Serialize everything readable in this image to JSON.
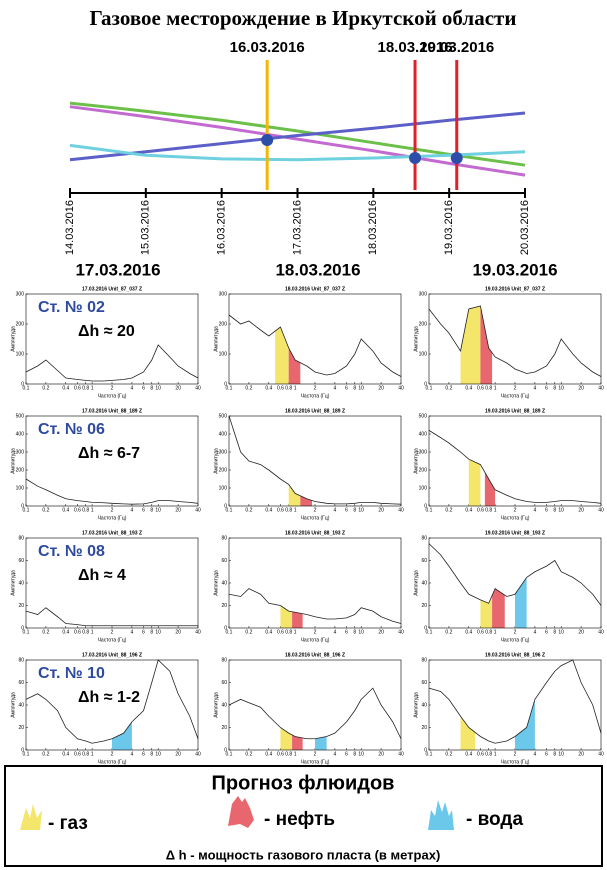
{
  "title": "Газовое месторождение в Иркутской области",
  "columns": [
    "17.03.2016",
    "18.03.2016",
    "19.03.2016"
  ],
  "stations": [
    {
      "name": "Ст. № 02",
      "dh": "Δh ≈ 20"
    },
    {
      "name": "Ст. № 06",
      "dh": "Δh ≈ 6-7"
    },
    {
      "name": "Ст. № 08",
      "dh": "Δh ≈ 4"
    },
    {
      "name": "Ст. № 10",
      "dh": "Δh ≈ 1-2"
    }
  ],
  "legend": {
    "title": "Прогноз флюидов",
    "items": [
      {
        "label": "- газ",
        "color": "#f4e66a"
      },
      {
        "label": "- нефть",
        "color": "#e8666e"
      },
      {
        "label": "- вода",
        "color": "#6cc8ea"
      }
    ],
    "note": "Δ h  - мощность газового пласта (в метрах)"
  },
  "chart_data": [
    {
      "type": "line",
      "xlim": [
        0,
        6
      ],
      "xticks": [
        {
          "value": 0,
          "label": "14.03.2016"
        },
        {
          "value": 1,
          "label": "15.03.2016"
        },
        {
          "value": 2,
          "label": "16.03.2016"
        },
        {
          "value": 3,
          "label": "17.03.2016"
        },
        {
          "value": 4,
          "label": "18.03.2016"
        },
        {
          "value": 5,
          "label": "19.03.2016"
        },
        {
          "value": 6,
          "label": "20.03.2016"
        }
      ],
      "ylim": [
        0,
        100
      ],
      "x": [
        0,
        1,
        2,
        3,
        4,
        5,
        6
      ],
      "series": [
        {
          "color": "#6cc04a",
          "values": [
            91,
            82,
            72,
            60,
            47,
            34,
            22
          ]
        },
        {
          "color": "#c36ad0",
          "values": [
            87,
            76,
            64,
            51,
            38,
            24,
            11
          ]
        },
        {
          "color": "#5b5fc7",
          "values": [
            28,
            37,
            46,
            55,
            63,
            72,
            80
          ]
        },
        {
          "color": "#6fd0e0",
          "values": [
            44,
            33,
            29,
            28,
            30,
            33,
            37
          ]
        }
      ],
      "markers": [
        {
          "label": "16.03.2016",
          "x": 2.6,
          "color": "#f5b800"
        },
        {
          "label": "18.03.2016",
          "x": 4.55,
          "color": "#e0202a"
        },
        {
          "label": "19.03.2016",
          "x": 5.1,
          "color": "#e0202a"
        }
      ],
      "points": [
        {
          "x": 2.6,
          "y": 50
        },
        {
          "x": 4.55,
          "y": 30
        },
        {
          "x": 5.1,
          "y": 30
        }
      ],
      "point_color": "#2d4ea8"
    },
    {
      "type": "spectrum",
      "title": "17.03.2016 Unit_87_037 Z",
      "xlabel": "Частота (Гц)",
      "ylabel": "Амплитуда",
      "log_x": true,
      "xlim": [
        0.1,
        40
      ],
      "xticks": [
        0.1,
        0.2,
        0.4,
        0.6,
        0.8,
        1,
        2,
        4,
        6,
        8,
        10,
        20,
        40
      ],
      "ylim": [
        0,
        300
      ],
      "yticks": [
        0,
        100,
        200,
        300
      ],
      "x": [
        0.1,
        0.15,
        0.2,
        0.3,
        0.4,
        0.6,
        0.8,
        1,
        1.5,
        2,
        3,
        4,
        6,
        8,
        10,
        15,
        20,
        30,
        40
      ],
      "values": [
        40,
        60,
        80,
        45,
        20,
        15,
        12,
        10,
        10,
        12,
        15,
        20,
        40,
        80,
        130,
        90,
        60,
        35,
        20
      ],
      "regions": []
    },
    {
      "type": "spectrum",
      "title": "18.03.2016 Unit_87_037 Z",
      "xlabel": "Частота (Гц)",
      "ylabel": "Амплитуда",
      "log_x": true,
      "xlim": [
        0.1,
        40
      ],
      "xticks": [
        0.1,
        0.2,
        0.4,
        0.6,
        0.8,
        1,
        2,
        4,
        6,
        8,
        10,
        20,
        40
      ],
      "ylim": [
        0,
        300
      ],
      "yticks": [
        0,
        100,
        200,
        300
      ],
      "x": [
        0.1,
        0.15,
        0.2,
        0.3,
        0.4,
        0.6,
        0.8,
        1,
        1.5,
        2,
        3,
        4,
        6,
        8,
        10,
        15,
        20,
        30,
        40
      ],
      "values": [
        230,
        200,
        210,
        180,
        160,
        190,
        120,
        80,
        60,
        40,
        30,
        35,
        60,
        100,
        150,
        110,
        70,
        40,
        25
      ],
      "regions": [
        {
          "x": [
            0.5,
            0.8
          ],
          "color": "#f4e66a"
        },
        {
          "x": [
            0.8,
            1.2
          ],
          "color": "#e8666e"
        }
      ]
    },
    {
      "type": "spectrum",
      "title": "19.03.2016 Unit_87_037 Z",
      "xlabel": "Частота (Гц)",
      "ylabel": "Амплитуда",
      "log_x": true,
      "xlim": [
        0.1,
        40
      ],
      "xticks": [
        0.1,
        0.2,
        0.4,
        0.6,
        0.8,
        1,
        2,
        4,
        6,
        8,
        10,
        20,
        40
      ],
      "ylim": [
        0,
        300
      ],
      "yticks": [
        0,
        100,
        200,
        300
      ],
      "x": [
        0.1,
        0.15,
        0.2,
        0.3,
        0.4,
        0.6,
        0.8,
        1,
        1.5,
        2,
        3,
        4,
        6,
        8,
        10,
        15,
        20,
        30,
        40
      ],
      "values": [
        250,
        200,
        170,
        110,
        250,
        260,
        120,
        90,
        70,
        50,
        35,
        40,
        60,
        100,
        150,
        100,
        70,
        40,
        25
      ],
      "regions": [
        {
          "x": [
            0.3,
            0.6
          ],
          "color": "#f4e66a"
        },
        {
          "x": [
            0.6,
            0.9
          ],
          "color": "#e8666e"
        }
      ]
    },
    {
      "type": "spectrum",
      "title": "17.03.2016 Unit_88_189 Z",
      "xlabel": "Частота (Гц)",
      "ylabel": "Амплитуда",
      "log_x": true,
      "xlim": [
        0.1,
        40
      ],
      "xticks": [
        0.1,
        0.2,
        0.4,
        0.6,
        0.8,
        1,
        2,
        4,
        6,
        8,
        10,
        20,
        40
      ],
      "ylim": [
        0,
        500
      ],
      "yticks": [
        0,
        100,
        200,
        300,
        400,
        500
      ],
      "x": [
        0.1,
        0.15,
        0.2,
        0.3,
        0.4,
        0.6,
        0.8,
        1,
        1.5,
        2,
        3,
        4,
        6,
        8,
        10,
        15,
        20,
        30,
        40
      ],
      "values": [
        150,
        110,
        90,
        60,
        40,
        30,
        25,
        20,
        18,
        15,
        12,
        10,
        12,
        20,
        30,
        30,
        25,
        20,
        15
      ],
      "regions": []
    },
    {
      "type": "spectrum",
      "title": "18.03.2016 Unit_88_189 Z",
      "xlabel": "Частота (Гц)",
      "ylabel": "Амплитуда",
      "log_x": true,
      "xlim": [
        0.1,
        40
      ],
      "xticks": [
        0.1,
        0.2,
        0.4,
        0.6,
        0.8,
        1,
        2,
        4,
        6,
        8,
        10,
        20,
        40
      ],
      "ylim": [
        0,
        500
      ],
      "yticks": [
        0,
        100,
        200,
        300,
        400,
        500
      ],
      "x": [
        0.1,
        0.15,
        0.2,
        0.3,
        0.4,
        0.6,
        0.8,
        1,
        1.5,
        2,
        3,
        4,
        6,
        8,
        10,
        15,
        20,
        30,
        40
      ],
      "values": [
        500,
        300,
        250,
        230,
        200,
        150,
        120,
        70,
        40,
        25,
        15,
        12,
        12,
        15,
        20,
        20,
        15,
        12,
        10
      ],
      "regions": [
        {
          "x": [
            0.8,
            1.2
          ],
          "color": "#f4e66a"
        },
        {
          "x": [
            1.2,
            1.8
          ],
          "color": "#e8666e"
        }
      ]
    },
    {
      "type": "spectrum",
      "title": "19.03.2016 Unit_88_189 Z",
      "xlabel": "Частота (Гц)",
      "ylabel": "Амплитуда",
      "log_x": true,
      "xlim": [
        0.1,
        40
      ],
      "xticks": [
        0.1,
        0.2,
        0.4,
        0.6,
        0.8,
        1,
        2,
        4,
        6,
        8,
        10,
        20,
        40
      ],
      "ylim": [
        0,
        500
      ],
      "yticks": [
        0,
        100,
        200,
        300,
        400,
        500
      ],
      "x": [
        0.1,
        0.15,
        0.2,
        0.3,
        0.4,
        0.6,
        0.8,
        1,
        1.5,
        2,
        3,
        4,
        6,
        8,
        10,
        15,
        20,
        30,
        40
      ],
      "values": [
        420,
        380,
        350,
        300,
        260,
        230,
        150,
        90,
        60,
        40,
        25,
        20,
        20,
        25,
        30,
        30,
        25,
        20,
        15
      ],
      "regions": [
        {
          "x": [
            0.4,
            0.6
          ],
          "color": "#f4e66a"
        },
        {
          "x": [
            0.7,
            1.0
          ],
          "color": "#e8666e"
        }
      ]
    },
    {
      "type": "spectrum",
      "title": "17.03.2016 Unit_88_193 Z",
      "xlabel": "Частота (Гц)",
      "ylabel": "Амплитуда",
      "log_x": true,
      "xlim": [
        0.1,
        40
      ],
      "xticks": [
        0.1,
        0.2,
        0.4,
        0.6,
        0.8,
        1,
        2,
        4,
        6,
        8,
        10,
        20,
        40
      ],
      "ylim": [
        0,
        80
      ],
      "yticks": [
        0,
        20,
        40,
        60,
        80
      ],
      "x": [
        0.1,
        0.15,
        0.2,
        0.3,
        0.4,
        0.6,
        0.8,
        1,
        1.5,
        2,
        3,
        4,
        6,
        8,
        10,
        15,
        20,
        30,
        40
      ],
      "values": [
        15,
        12,
        18,
        10,
        4,
        3,
        2,
        2,
        2,
        2,
        2,
        2,
        2,
        2,
        2,
        2,
        2,
        2,
        2
      ],
      "regions": []
    },
    {
      "type": "spectrum",
      "title": "18.03.2016 Unit_88_193 Z",
      "xlabel": "Частота (Гц)",
      "ylabel": "Амплитуда",
      "log_x": true,
      "xlim": [
        0.1,
        40
      ],
      "xticks": [
        0.1,
        0.2,
        0.4,
        0.6,
        0.8,
        1,
        2,
        4,
        6,
        8,
        10,
        20,
        40
      ],
      "ylim": [
        0,
        80
      ],
      "yticks": [
        0,
        20,
        40,
        60,
        80
      ],
      "x": [
        0.1,
        0.15,
        0.2,
        0.3,
        0.4,
        0.6,
        0.8,
        1,
        1.5,
        2,
        3,
        4,
        6,
        8,
        10,
        15,
        20,
        30,
        40
      ],
      "values": [
        30,
        28,
        35,
        30,
        22,
        20,
        15,
        14,
        12,
        10,
        8,
        8,
        9,
        12,
        18,
        15,
        10,
        6,
        4
      ],
      "regions": [
        {
          "x": [
            0.6,
            0.9
          ],
          "color": "#f4e66a"
        },
        {
          "x": [
            0.9,
            1.3
          ],
          "color": "#e8666e"
        }
      ]
    },
    {
      "type": "spectrum",
      "title": "19.03.2016 Unit_88_193 Z",
      "xlabel": "Частота (Гц)",
      "ylabel": "Амплитуда",
      "log_x": true,
      "xlim": [
        0.1,
        40
      ],
      "xticks": [
        0.1,
        0.2,
        0.4,
        0.6,
        0.8,
        1,
        2,
        4,
        6,
        8,
        10,
        20,
        40
      ],
      "ylim": [
        0,
        80
      ],
      "yticks": [
        0,
        20,
        40,
        60,
        80
      ],
      "x": [
        0.1,
        0.15,
        0.2,
        0.3,
        0.4,
        0.6,
        0.8,
        1,
        1.5,
        2,
        3,
        4,
        6,
        8,
        10,
        15,
        20,
        30,
        40
      ],
      "values": [
        75,
        65,
        55,
        40,
        30,
        25,
        22,
        35,
        28,
        30,
        45,
        50,
        55,
        60,
        50,
        45,
        40,
        30,
        20
      ],
      "regions": [
        {
          "x": [
            0.6,
            0.9
          ],
          "color": "#f4e66a"
        },
        {
          "x": [
            0.9,
            1.4
          ],
          "color": "#e8666e"
        },
        {
          "x": [
            2,
            3
          ],
          "color": "#6cc8ea"
        }
      ]
    },
    {
      "type": "spectrum",
      "title": "17.03.2016 Unit_88_196 Z",
      "xlabel": "Частота (Гц)",
      "ylabel": "Амплитуда",
      "log_x": true,
      "xlim": [
        0.1,
        40
      ],
      "xticks": [
        0.1,
        0.2,
        0.4,
        0.6,
        0.8,
        1,
        2,
        4,
        6,
        8,
        10,
        20,
        40
      ],
      "ylim": [
        0,
        80
      ],
      "yticks": [
        0,
        20,
        40,
        60,
        80
      ],
      "x": [
        0.1,
        0.15,
        0.2,
        0.3,
        0.4,
        0.6,
        0.8,
        1,
        1.5,
        2,
        3,
        4,
        6,
        8,
        10,
        15,
        20,
        30,
        40
      ],
      "values": [
        45,
        50,
        45,
        35,
        20,
        10,
        8,
        6,
        8,
        10,
        15,
        25,
        35,
        60,
        80,
        70,
        50,
        30,
        10
      ],
      "regions": [
        {
          "x": [
            2,
            4
          ],
          "color": "#6cc8ea"
        }
      ]
    },
    {
      "type": "spectrum",
      "title": "18.03.2016 Unit_88_196 Z",
      "xlabel": "Частота (Гц)",
      "ylabel": "Амплитуда",
      "log_x": true,
      "xlim": [
        0.1,
        40
      ],
      "xticks": [
        0.1,
        0.2,
        0.4,
        0.6,
        0.8,
        1,
        2,
        4,
        6,
        8,
        10,
        20,
        40
      ],
      "ylim": [
        0,
        80
      ],
      "yticks": [
        0,
        20,
        40,
        60,
        80
      ],
      "x": [
        0.1,
        0.15,
        0.2,
        0.3,
        0.4,
        0.6,
        0.8,
        1,
        1.5,
        2,
        3,
        4,
        6,
        8,
        10,
        15,
        20,
        30,
        40
      ],
      "values": [
        40,
        45,
        42,
        38,
        30,
        20,
        15,
        12,
        10,
        10,
        12,
        15,
        25,
        35,
        45,
        55,
        40,
        25,
        10
      ],
      "regions": [
        {
          "x": [
            0.6,
            0.9
          ],
          "color": "#f4e66a"
        },
        {
          "x": [
            0.9,
            1.3
          ],
          "color": "#e8666e"
        },
        {
          "x": [
            2,
            3
          ],
          "color": "#6cc8ea"
        }
      ]
    },
    {
      "type": "spectrum",
      "title": "19.03.2016 Unit_88_196 Z",
      "xlabel": "Частота (Гц)",
      "ylabel": "Амплитуда",
      "log_x": true,
      "xlim": [
        0.1,
        40
      ],
      "xticks": [
        0.1,
        0.2,
        0.4,
        0.6,
        0.8,
        1,
        2,
        4,
        6,
        8,
        10,
        20,
        40
      ],
      "ylim": [
        0,
        80
      ],
      "yticks": [
        0,
        20,
        40,
        60,
        80
      ],
      "x": [
        0.1,
        0.15,
        0.2,
        0.3,
        0.4,
        0.6,
        0.8,
        1,
        1.5,
        2,
        3,
        4,
        6,
        8,
        10,
        15,
        20,
        30,
        40
      ],
      "values": [
        55,
        52,
        45,
        30,
        20,
        12,
        8,
        6,
        8,
        12,
        20,
        45,
        60,
        70,
        75,
        80,
        60,
        40,
        15
      ],
      "regions": [
        {
          "x": [
            0.3,
            0.5
          ],
          "color": "#f4e66a"
        },
        {
          "x": [
            2,
            4
          ],
          "color": "#6cc8ea"
        }
      ]
    }
  ]
}
